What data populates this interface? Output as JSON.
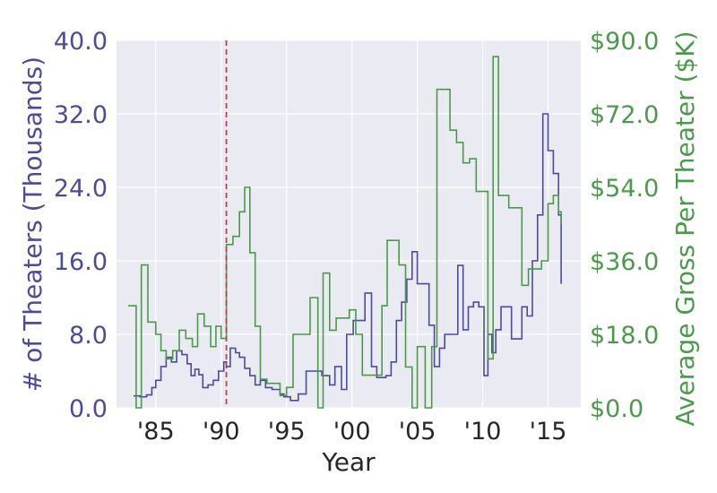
{
  "chart_data": {
    "type": "line",
    "xlabel": "Year",
    "x_tick_labels": [
      "'85",
      "'90",
      "'95",
      "'00",
      "'05",
      "'10",
      "'15"
    ],
    "x_tick_values": [
      1985,
      1990,
      1995,
      2000,
      2005,
      2010,
      2015
    ],
    "xlim": [
      1982,
      2017.5
    ],
    "left_axis": {
      "label": "# of Theaters (Thousands)",
      "ylim": [
        0,
        40
      ],
      "ticks": [
        "0.0",
        "8.0",
        "16.0",
        "24.0",
        "32.0",
        "40.0"
      ],
      "color": "#4b4b9a"
    },
    "right_axis": {
      "label": "Average Gross Per Theater ($K)",
      "ylim": [
        0,
        90
      ],
      "ticks": [
        "$0.0",
        "$18.0",
        "$36.0",
        "$54.0",
        "$72.0",
        "$90.0"
      ],
      "color": "#4a9a4a"
    },
    "grid": true,
    "background": "#eaeaf2",
    "marker_line": {
      "x": 1990.4,
      "color": "#b04848",
      "style": "dashed"
    },
    "series": [
      {
        "axis": "left",
        "color": "#4b4b9a",
        "x": [
          1983.3,
          1983.8,
          1984.3,
          1984.7,
          1985.0,
          1985.4,
          1985.8,
          1986.2,
          1986.6,
          1987.0,
          1987.4,
          1987.7,
          1988.0,
          1988.3,
          1988.6,
          1989.0,
          1989.4,
          1989.8,
          1990.2,
          1990.4,
          1990.7,
          1991.1,
          1991.4,
          1991.8,
          1992.2,
          1992.6,
          1993.0,
          1993.4,
          1993.9,
          1994.5,
          1994.8,
          1995.3,
          1995.9,
          1996.5,
          1997.1,
          1997.7,
          1998.3,
          1998.7,
          1999.2,
          1999.6,
          2000.1,
          2000.6,
          2001.0,
          2001.5,
          2001.9,
          2002.3,
          2002.6,
          2003.0,
          2003.4,
          2003.8,
          2004.2,
          2004.6,
          2005.0,
          2005.5,
          2005.9,
          2006.3,
          2006.7,
          2007.1,
          2007.6,
          2008.1,
          2008.5,
          2008.9,
          2009.3,
          2009.7,
          2010.1,
          2010.4,
          2010.7,
          2011.0,
          2011.4,
          2011.8,
          2012.2,
          2012.6,
          2013.0,
          2013.4,
          2013.8,
          2014.2,
          2014.6,
          2015.0,
          2015.4,
          2015.8,
          2016.0
        ],
        "y": [
          1.3,
          1.2,
          1.4,
          2.2,
          3.0,
          4.5,
          5.5,
          5.0,
          6.2,
          5.8,
          4.8,
          3.5,
          4.2,
          3.6,
          2.2,
          2.5,
          3.0,
          4.0,
          5.0,
          4.5,
          6.5,
          6.0,
          5.5,
          4.3,
          3.5,
          2.5,
          3.0,
          2.2,
          2.0,
          1.5,
          1.2,
          0.8,
          1.5,
          4.0,
          4.0,
          3.5,
          2.5,
          4.5,
          2.0,
          8.0,
          9.5,
          9.5,
          12.5,
          4.5,
          3.3,
          3.3,
          3.5,
          5.0,
          9.5,
          11.5,
          14.0,
          17.0,
          13.5,
          13.5,
          9.0,
          4.5,
          6.5,
          8.0,
          8.0,
          15.5,
          8.5,
          11.0,
          11.5,
          11.0,
          3.5,
          8.0,
          6.0,
          8.5,
          11.0,
          11.0,
          7.5,
          7.5,
          11.0,
          10.0,
          16.0,
          21.0,
          32.0,
          28.0,
          25.5,
          21.0,
          13.5
        ]
      },
      {
        "axis": "right",
        "color": "#4a9a4a",
        "x": [
          1982.9,
          1983.5,
          1983.9,
          1984.4,
          1985.0,
          1985.4,
          1985.8,
          1986.3,
          1986.8,
          1987.3,
          1987.8,
          1988.2,
          1988.7,
          1989.2,
          1989.6,
          1990.0,
          1990.4,
          1990.9,
          1991.4,
          1991.8,
          1992.2,
          1992.6,
          1993.0,
          1993.5,
          1994.0,
          1994.5,
          1995.0,
          1995.5,
          1996.0,
          1996.8,
          1997.4,
          1997.8,
          1998.3,
          1998.8,
          1999.3,
          1999.8,
          2000.3,
          2000.8,
          2001.3,
          2001.8,
          2002.3,
          2002.7,
          2003.2,
          2003.6,
          2004.1,
          2004.6,
          2005.0,
          2005.6,
          2006.1,
          2006.5,
          2007.0,
          2007.5,
          2008.0,
          2008.5,
          2009.0,
          2009.5,
          2010.0,
          2010.4,
          2010.8,
          2011.2,
          2011.6,
          2012.0,
          2012.5,
          2013.0,
          2013.5,
          2014.0,
          2014.5,
          2015.0,
          2015.4,
          2015.8,
          2016.0
        ],
        "y": [
          25.0,
          0.0,
          35.0,
          21.0,
          18.0,
          14.0,
          12.0,
          14.0,
          19.0,
          17.0,
          15.0,
          23.0,
          20.0,
          15.0,
          20.0,
          17.0,
          40.0,
          42.0,
          48.0,
          54.0,
          38.0,
          20.0,
          7.0,
          6.0,
          6.0,
          3.0,
          5.0,
          18.0,
          18.0,
          27.0,
          0.0,
          33.0,
          19.0,
          22.0,
          22.0,
          24.0,
          18.0,
          8.0,
          8.0,
          8.0,
          25.0,
          41.0,
          41.0,
          35.0,
          10.0,
          0.0,
          15.0,
          0.0,
          15.0,
          78.0,
          78.0,
          68.0,
          65.0,
          60.0,
          61.0,
          53.0,
          53.0,
          12.0,
          86.0,
          52.0,
          52.0,
          49.0,
          49.0,
          30.0,
          34.0,
          34.0,
          36.0,
          50.0,
          52.0,
          48.0,
          45.0
        ]
      }
    ]
  }
}
